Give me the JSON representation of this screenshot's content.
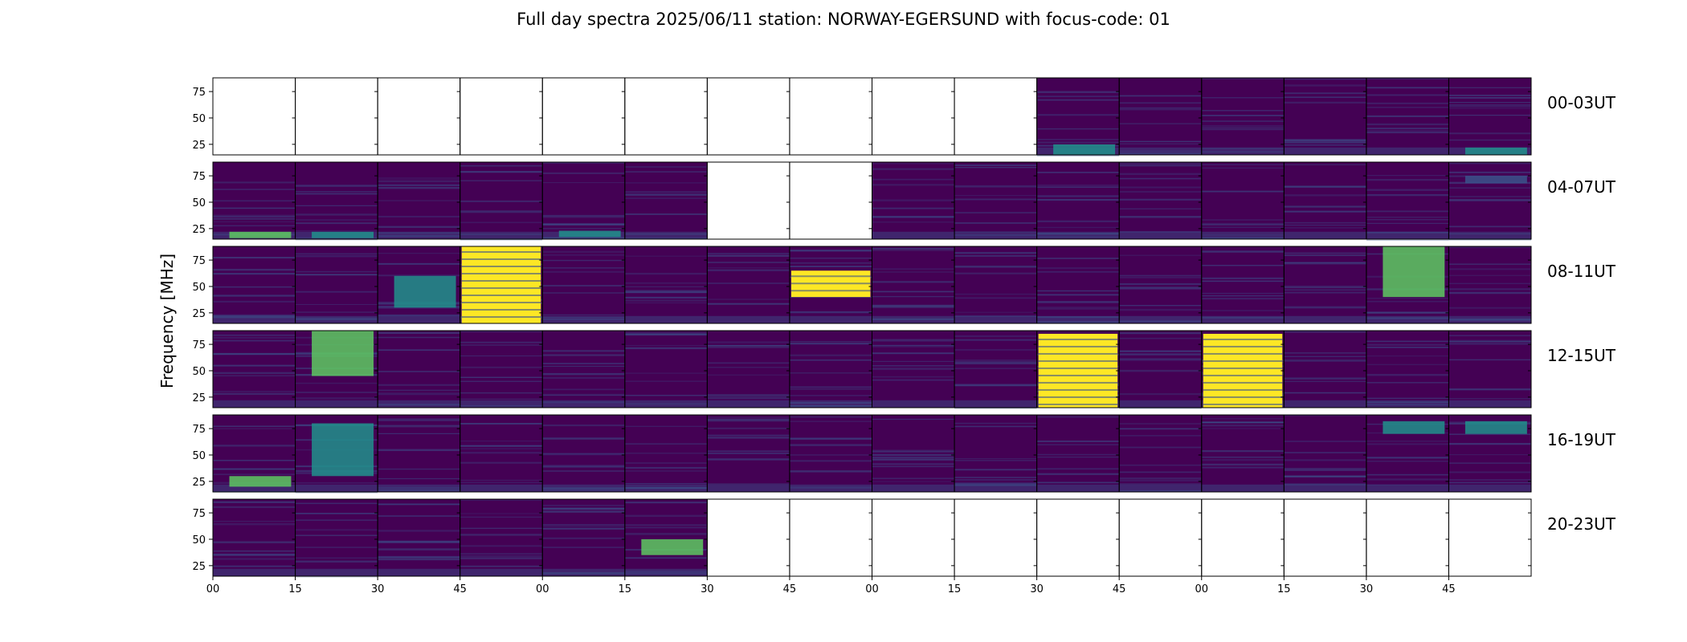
{
  "chart_data": {
    "type": "heatmap",
    "title": "Full day spectra 2025/06/11 station: NORWAY-EGERSUND with focus-code: 01",
    "ylabel": "Frequency [MHz]",
    "ylim": [
      15,
      88
    ],
    "yticks": [
      "25",
      "50",
      "75"
    ],
    "xticks": [
      "00",
      "15",
      "30",
      "45",
      "00",
      "15",
      "30",
      "45",
      "00",
      "15",
      "30",
      "45",
      "00",
      "15",
      "30",
      "45"
    ],
    "colormap": [
      "#440154",
      "#3b528b",
      "#21918c",
      "#5ec962",
      "#fde725"
    ],
    "rows": [
      {
        "label": "00-03UT",
        "panels": [
          "empty",
          "empty",
          "empty",
          "empty",
          "empty",
          "empty",
          "empty",
          "empty",
          "empty",
          "empty",
          "data",
          "data",
          "data",
          "data",
          "data",
          "data"
        ]
      },
      {
        "label": "04-07UT",
        "panels": [
          "data",
          "data",
          "data",
          "data",
          "data",
          "data",
          "empty",
          "empty",
          "data",
          "data",
          "data",
          "data",
          "data",
          "data",
          "data",
          "data"
        ]
      },
      {
        "label": "08-11UT",
        "panels": [
          "data",
          "data",
          "data",
          "data",
          "data",
          "data",
          "data",
          "data",
          "data",
          "data",
          "data",
          "data",
          "data",
          "data",
          "data",
          "data"
        ]
      },
      {
        "label": "12-15UT",
        "panels": [
          "data",
          "data",
          "data",
          "data",
          "data",
          "data",
          "data",
          "data",
          "data",
          "data",
          "data",
          "data",
          "data",
          "data",
          "data",
          "data"
        ]
      },
      {
        "label": "16-19UT",
        "panels": [
          "data",
          "data",
          "data",
          "data",
          "data",
          "data",
          "data",
          "data",
          "data",
          "data",
          "data",
          "data",
          "data",
          "data",
          "data",
          "data"
        ]
      },
      {
        "label": "20-23UT",
        "panels": [
          "data",
          "data",
          "data",
          "data",
          "data",
          "data",
          "empty",
          "empty",
          "empty",
          "empty",
          "empty",
          "empty",
          "empty",
          "empty",
          "empty",
          "empty"
        ]
      }
    ],
    "features": [
      {
        "row": 0,
        "panel": 10,
        "kind": "band",
        "from": 15,
        "to": 25,
        "level": 2
      },
      {
        "row": 0,
        "panel": 15,
        "kind": "band",
        "from": 15,
        "to": 22,
        "level": 2
      },
      {
        "row": 1,
        "panel": 0,
        "kind": "band",
        "from": 16,
        "to": 22,
        "level": 3
      },
      {
        "row": 1,
        "panel": 1,
        "kind": "band",
        "from": 16,
        "to": 22,
        "level": 2
      },
      {
        "row": 1,
        "panel": 4,
        "kind": "band",
        "from": 17,
        "to": 23,
        "level": 2
      },
      {
        "row": 1,
        "panel": 15,
        "kind": "band",
        "from": 68,
        "to": 75,
        "level": 1
      },
      {
        "row": 2,
        "panel": 3,
        "kind": "block",
        "from": 15,
        "to": 88,
        "level": 4
      },
      {
        "row": 2,
        "panel": 2,
        "kind": "band",
        "from": 30,
        "to": 60,
        "level": 2
      },
      {
        "row": 2,
        "panel": 7,
        "kind": "block",
        "from": 40,
        "to": 65,
        "level": 4
      },
      {
        "row": 2,
        "panel": 14,
        "kind": "band",
        "from": 40,
        "to": 88,
        "level": 3
      },
      {
        "row": 3,
        "panel": 1,
        "kind": "band",
        "from": 45,
        "to": 88,
        "level": 3
      },
      {
        "row": 3,
        "panel": 10,
        "kind": "block",
        "from": 15,
        "to": 85,
        "level": 4
      },
      {
        "row": 3,
        "panel": 12,
        "kind": "block",
        "from": 15,
        "to": 85,
        "level": 4
      },
      {
        "row": 4,
        "panel": 0,
        "kind": "band",
        "from": 20,
        "to": 30,
        "level": 3
      },
      {
        "row": 4,
        "panel": 1,
        "kind": "band",
        "from": 30,
        "to": 80,
        "level": 2
      },
      {
        "row": 4,
        "panel": 14,
        "kind": "band",
        "from": 70,
        "to": 82,
        "level": 2
      },
      {
        "row": 4,
        "panel": 15,
        "kind": "band",
        "from": 70,
        "to": 82,
        "level": 2
      },
      {
        "row": 5,
        "panel": 5,
        "kind": "band",
        "from": 35,
        "to": 50,
        "level": 3
      }
    ]
  }
}
